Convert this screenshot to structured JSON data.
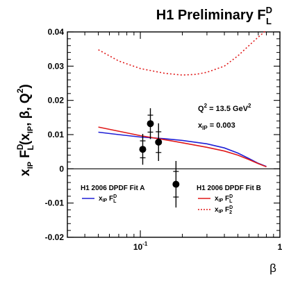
{
  "chart_data": {
    "type": "scatter",
    "title": {
      "text": "H1 Preliminary F",
      "sup": "D",
      "sub": "L"
    },
    "ylabel": {
      "parts": [
        "x",
        "IP",
        " F",
        "D",
        "L",
        "(x",
        "IP",
        ", β, Q",
        "2",
        ")"
      ]
    },
    "xlabel": "β",
    "xscale": "log",
    "xlim": [
      0.03,
      1
    ],
    "ylim": [
      -0.02,
      0.04
    ],
    "grid": false,
    "yticks": [
      {
        "v": -0.02,
        "label": "-0.02"
      },
      {
        "v": -0.01,
        "label": "-0.01"
      },
      {
        "v": 0,
        "label": "0"
      },
      {
        "v": 0.01,
        "label": "0.01"
      },
      {
        "v": 0.02,
        "label": "0.02"
      },
      {
        "v": 0.03,
        "label": "0.03"
      },
      {
        "v": 0.04,
        "label": "0.04"
      }
    ],
    "xticks": [
      {
        "v": 0.1,
        "label": "10",
        "sup": "-1"
      },
      {
        "v": 1,
        "label": "1",
        "sup": ""
      }
    ],
    "annotations": {
      "q2": {
        "pre": "Q",
        "sup": "2",
        "post": " = 13.5 GeV",
        "sup2": "2"
      },
      "xip": {
        "pre": "x",
        "sub": "IP",
        "post": " = 0.003"
      }
    },
    "points": [
      {
        "x": 0.104,
        "y": 0.0057,
        "err": 0.0045
      },
      {
        "x": 0.118,
        "y": 0.0132,
        "err": 0.0045
      },
      {
        "x": 0.135,
        "y": 0.0078,
        "err": 0.0055
      },
      {
        "x": 0.18,
        "y": -0.0045,
        "err": 0.0068
      }
    ],
    "series": [
      {
        "name": "x_IP F_L^D (Fit A)",
        "color": "#1f1fd6",
        "dash": "solid",
        "x": [
          0.05,
          0.07,
          0.1,
          0.15,
          0.2,
          0.3,
          0.4,
          0.5,
          0.6,
          0.7,
          0.8
        ],
        "y": [
          0.0107,
          0.01,
          0.0093,
          0.0088,
          0.0083,
          0.0073,
          0.0061,
          0.0046,
          0.003,
          0.0016,
          0.0007
        ]
      },
      {
        "name": "x_IP F_L^D (Fit B)",
        "color": "#e01818",
        "dash": "solid",
        "x": [
          0.05,
          0.07,
          0.1,
          0.15,
          0.2,
          0.3,
          0.4,
          0.5,
          0.6,
          0.7,
          0.8
        ],
        "y": [
          0.0122,
          0.011,
          0.0097,
          0.0085,
          0.0076,
          0.0063,
          0.0052,
          0.004,
          0.0027,
          0.0015,
          0.0006
        ]
      },
      {
        "name": "x_IP F_2^D (Fit B)",
        "color": "#e01818",
        "dash": "dotted",
        "x": [
          0.05,
          0.07,
          0.1,
          0.15,
          0.2,
          0.25,
          0.3,
          0.4,
          0.5,
          0.6,
          0.7,
          0.8
        ],
        "y": [
          0.0348,
          0.0315,
          0.0293,
          0.0279,
          0.0274,
          0.0276,
          0.0282,
          0.03,
          0.033,
          0.036,
          0.0385,
          0.0405
        ]
      }
    ],
    "legends": [
      {
        "title": "H1 2006 DPDF Fit A",
        "entries": [
          {
            "color": "#1f1fd6",
            "dash": "solid",
            "label": {
              "a": "x",
              "asub": "IP",
              "b": " F",
              "bsup": "D",
              "bsub": "L"
            }
          }
        ]
      },
      {
        "title": "H1 2006 DPDF Fit B",
        "entries": [
          {
            "color": "#e01818",
            "dash": "solid",
            "label": {
              "a": "x",
              "asub": "IP",
              "b": " F",
              "bsup": "D",
              "bsub": "L"
            }
          },
          {
            "color": "#e01818",
            "dash": "dotted",
            "label": {
              "a": "x",
              "asub": "IP",
              "b": " F",
              "bsup": "D",
              "bsub": "2"
            }
          }
        ]
      }
    ]
  }
}
